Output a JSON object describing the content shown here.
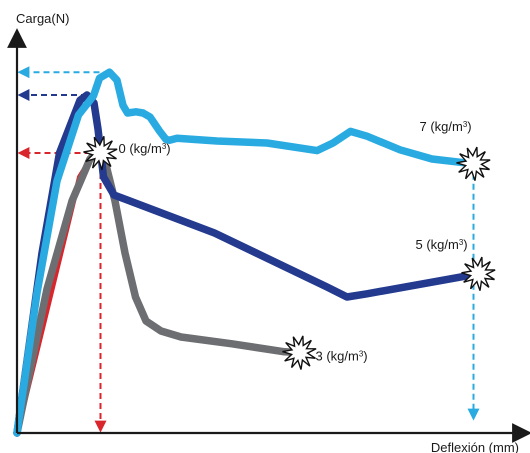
{
  "chart_data": {
    "type": "line",
    "title": "",
    "ylabel": "Carga(N)",
    "xlabel": "Deflexión (mm)",
    "grid": false,
    "legend": "none",
    "units_note": "qualitative (no numeric ticks)",
    "xlim": [
      0,
      100
    ],
    "ylim": [
      0,
      100
    ],
    "series": [
      {
        "name": "0 (kg/m³)",
        "label_parts": [
          "0 (kg/m",
          "3",
          ")"
        ],
        "color": "#d9262c",
        "x": [
          0,
          12.5,
          14,
          15,
          16.7
        ],
        "y": [
          0,
          64,
          67,
          69,
          70
        ]
      },
      {
        "name": "3 (kg/m³)",
        "label_parts": [
          "3 (kg/m",
          "3",
          ")"
        ],
        "color": "#6d6e71",
        "x": [
          0,
          6,
          11,
          14.6,
          16.2,
          17.5,
          19.6,
          21.6,
          23.7,
          25.8,
          28.8,
          32.8,
          43,
          53.5,
          56.5
        ],
        "y": [
          0,
          36,
          58,
          68.5,
          70.5,
          68.5,
          58,
          45,
          34,
          28,
          25.5,
          24,
          22.3,
          20.3,
          20.1
        ]
      },
      {
        "name": "5 (kg/m³)",
        "label_parts": [
          "5 (kg/m",
          "3",
          ")"
        ],
        "color": "#233a8f",
        "x": [
          0,
          5,
          8.5,
          12.6,
          14,
          15.4,
          16.2,
          17.3,
          19.4,
          39.5,
          62,
          66,
          70,
          92.3
        ],
        "y": [
          0,
          45,
          70,
          83.2,
          84.5,
          82.5,
          76,
          64,
          59.5,
          50,
          36.5,
          34,
          34.8,
          39.8
        ]
      },
      {
        "name": "7 (kg/m³)",
        "label_parts": [
          "7 (kg/m",
          "3",
          ")"
        ],
        "color": "#29abe2",
        "x": [
          0,
          4,
          8,
          12.3,
          15.3,
          16.5,
          18.5,
          20,
          21.2,
          22.1,
          23.8,
          25.2,
          26.6,
          28.5,
          29.8,
          30.5,
          32,
          40,
          50,
          60,
          63.2,
          66.7,
          70,
          76.6,
          83,
          91.3
        ],
        "y": [
          0,
          35,
          63,
          79.5,
          84.3,
          88.7,
          90.2,
          88.2,
          81.9,
          80,
          80.3,
          80,
          79,
          75.5,
          73.4,
          73.2,
          73.7,
          73,
          72.5,
          70.6,
          72.5,
          75.4,
          74.2,
          70.8,
          68.5,
          67.3
        ]
      }
    ],
    "reference_arrows": [
      {
        "series": "7 (kg/m³)",
        "color": "#29abe2",
        "peak": [
          18.5,
          90.2
        ],
        "failure": [
          91.3,
          67.3
        ]
      },
      {
        "series": "5 (kg/m³)",
        "color": "#233a8f",
        "peak": [
          14,
          84.5
        ]
      },
      {
        "series": "0 (kg/m³)",
        "color": "#d9262c",
        "peak": [
          16.7,
          70
        ]
      }
    ]
  }
}
